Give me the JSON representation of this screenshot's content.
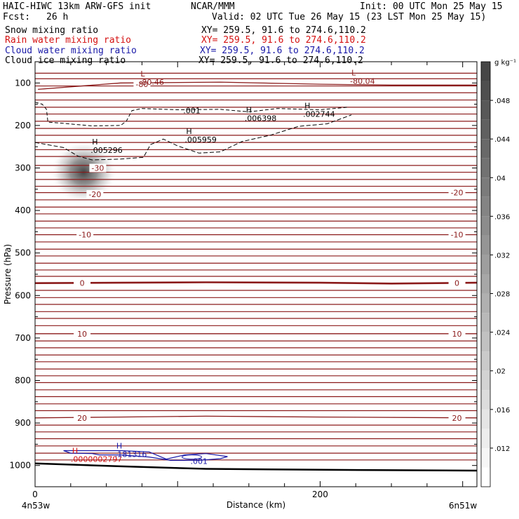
{
  "header": {
    "model": "HAIC-HIWC 13km ARW-GFS init",
    "org": "NCAR/MMM",
    "init": "Init: 00 UTC Mon 25 May 15",
    "fcst_label": "Fcst:",
    "fcst_value": "26 h",
    "valid": "Valid: 02 UTC Tue 26 May 15 (23 LST Mon 25 May 15)"
  },
  "fields": [
    {
      "name": "Snow mixing ratio",
      "xy": "XY= 259.5, 91.6 to 274.6,110.2",
      "color": "#000000"
    },
    {
      "name": "Rain water mixing ratio",
      "xy": "XY= 259.5, 91.6 to 274.6,110.2",
      "color": "#d41010"
    },
    {
      "name": "Cloud water mixing ratio",
      "xy": "XY= 259.5, 91.6 to 274.6,110.2",
      "color": "#1a1aa8"
    },
    {
      "name": "Cloud ice mixing ratio",
      "xy": "XY= 259.5, 91.6 to 274.6,110.2",
      "color": "#000000"
    }
  ],
  "chart_data": {
    "type": "heatmap",
    "xlabel": "Distance (km)",
    "ylabel": "Pressure (hPa)",
    "xlim": [
      0,
      310
    ],
    "ylim": [
      1050,
      50
    ],
    "x_ticks": [
      0,
      200
    ],
    "y_ticks": [
      100,
      200,
      300,
      400,
      500,
      600,
      700,
      800,
      900,
      1000
    ],
    "x_end_labels": {
      "left": "4n53w",
      "right": "6n51w"
    },
    "colorbar": {
      "unit": "g kg⁻¹",
      "ticks": [
        ".012",
        ".016",
        ".02",
        ".024",
        ".028",
        ".032",
        ".036",
        ".04",
        ".044",
        ".048"
      ],
      "tick_values": [
        0.012,
        0.016,
        0.02,
        0.024,
        0.028,
        0.032,
        0.036,
        0.04,
        0.044,
        0.048
      ],
      "min": 0.008,
      "max": 0.052
    },
    "snow_maximum": {
      "x": 34,
      "p": 310,
      "value": 0.05,
      "sx": 9,
      "sp": 28
    },
    "ground_line": [
      [
        0,
        995
      ],
      [
        60,
        1002
      ],
      [
        120,
        1008
      ],
      [
        200,
        1010
      ],
      [
        310,
        1012
      ]
    ],
    "temperature_contours": [
      {
        "temp": -80,
        "points": [
          [
            2,
            115
          ],
          [
            60,
            100
          ],
          [
            130,
            98
          ],
          [
            200,
            103
          ],
          [
            250,
            105
          ],
          [
            310,
            105
          ]
        ],
        "labels": [
          {
            "x": 75,
            "p": 103,
            "text": "-80"
          }
        ]
      },
      {
        "temp": -30,
        "points": [
          [
            0,
            294
          ],
          [
            310,
            294
          ]
        ],
        "labels": [
          {
            "x": 44,
            "p": 300,
            "text": "-30"
          }
        ]
      },
      {
        "temp": -20,
        "points": [
          [
            0,
            358
          ],
          [
            310,
            358
          ]
        ],
        "labels": [
          {
            "x": 42,
            "p": 362,
            "text": "-20"
          },
          {
            "x": 296,
            "p": 358,
            "text": "-20"
          }
        ]
      },
      {
        "temp": -10,
        "points": [
          [
            0,
            457
          ],
          [
            310,
            457
          ]
        ],
        "labels": [
          {
            "x": 35,
            "p": 457,
            "text": "-10"
          },
          {
            "x": 296,
            "p": 457,
            "text": "-10"
          }
        ]
      },
      {
        "temp": 0,
        "points": [
          [
            0,
            571
          ],
          [
            60,
            570
          ],
          [
            120,
            569
          ],
          [
            200,
            570
          ],
          [
            250,
            572
          ],
          [
            310,
            570
          ]
        ],
        "labels": [
          {
            "x": 33,
            "p": 571,
            "text": "0"
          },
          {
            "x": 296,
            "p": 571,
            "text": "0"
          }
        ]
      },
      {
        "temp": 10,
        "points": [
          [
            0,
            690
          ],
          [
            310,
            690
          ]
        ],
        "labels": [
          {
            "x": 33,
            "p": 690,
            "text": "10"
          },
          {
            "x": 296,
            "p": 690,
            "text": "10"
          }
        ]
      },
      {
        "temp": 20,
        "points": [
          [
            0,
            888
          ],
          [
            60,
            886
          ],
          [
            120,
            884
          ],
          [
            200,
            886
          ],
          [
            310,
            888
          ]
        ],
        "labels": [
          {
            "x": 33,
            "p": 888,
            "text": "20"
          },
          {
            "x": 296,
            "p": 888,
            "text": "20"
          }
        ]
      }
    ],
    "plain_isotherm_levels": [
      77,
      90,
      107,
      123,
      140,
      157,
      173,
      190,
      207,
      223,
      240,
      257,
      273,
      310,
      327,
      343,
      375,
      392,
      408,
      425,
      441,
      474,
      491,
      507,
      524,
      540,
      555,
      588,
      605,
      621,
      638,
      654,
      671,
      707,
      723,
      740,
      756,
      773,
      789,
      805,
      822,
      838,
      855,
      871,
      905,
      921,
      937,
      954,
      971,
      987
    ],
    "cloud_ice_contour": {
      "level": ".001",
      "points": [
        [
          0,
          145
        ],
        [
          5,
          150
        ],
        [
          8,
          162
        ],
        [
          9,
          192
        ],
        [
          20,
          195
        ],
        [
          40,
          201
        ],
        [
          60,
          200
        ],
        [
          64,
          190
        ],
        [
          68,
          165
        ],
        [
          75,
          160
        ],
        [
          100,
          163
        ],
        [
          130,
          162
        ],
        [
          150,
          168
        ],
        [
          170,
          160
        ],
        [
          200,
          163
        ],
        [
          220,
          157
        ]
      ],
      "label": {
        "x": 110,
        "p": 165,
        "text": ".001"
      }
    },
    "snow_contour": {
      "points": [
        [
          0,
          240
        ],
        [
          20,
          252
        ],
        [
          30,
          272
        ],
        [
          40,
          281
        ],
        [
          60,
          279
        ],
        [
          76,
          275
        ],
        [
          81,
          245
        ],
        [
          90,
          232
        ],
        [
          100,
          248
        ],
        [
          115,
          265
        ],
        [
          130,
          262
        ],
        [
          145,
          238
        ],
        [
          165,
          223
        ],
        [
          185,
          202
        ],
        [
          205,
          196
        ],
        [
          222,
          175
        ]
      ]
    },
    "cloud_water_contour": {
      "points": [
        [
          20,
          965
        ],
        [
          40,
          965
        ],
        [
          60,
          965
        ],
        [
          80,
          968
        ],
        [
          85,
          975
        ],
        [
          92,
          985
        ],
        [
          105,
          975
        ],
        [
          120,
          972
        ],
        [
          135,
          979
        ],
        [
          130,
          984
        ],
        [
          115,
          988
        ],
        [
          95,
          988
        ],
        [
          80,
          980
        ],
        [
          60,
          975
        ],
        [
          45,
          975
        ],
        [
          40,
          972
        ],
        [
          25,
          971
        ]
      ],
      "label": {
        "x": 115,
        "p": 990,
        "text": ".001"
      }
    },
    "annotations": [
      {
        "kind": "L",
        "x": 74,
        "p": 85,
        "value": "-80.46",
        "color": "#8b1a1a"
      },
      {
        "kind": "L",
        "x": 222,
        "p": 82,
        "value": "-80.04",
        "color": "#8b1a1a"
      },
      {
        "kind": "H",
        "x": 40,
        "p": 245,
        "value": ".005296",
        "color": "#000000"
      },
      {
        "kind": "H",
        "x": 106,
        "p": 220,
        "value": ".005959",
        "color": "#000000"
      },
      {
        "kind": "H",
        "x": 148,
        "p": 170,
        "value": ".006398",
        "color": "#000000"
      },
      {
        "kind": "H",
        "x": 189,
        "p": 160,
        "value": ".002744",
        "color": "#000000"
      },
      {
        "kind": "H",
        "x": 26,
        "p": 972,
        "value": ".0000002797",
        "color": "#d41010"
      },
      {
        "kind": "H",
        "x": 57,
        "p": 960,
        "value": ".181316",
        "color": "#1a1aa8"
      }
    ]
  }
}
